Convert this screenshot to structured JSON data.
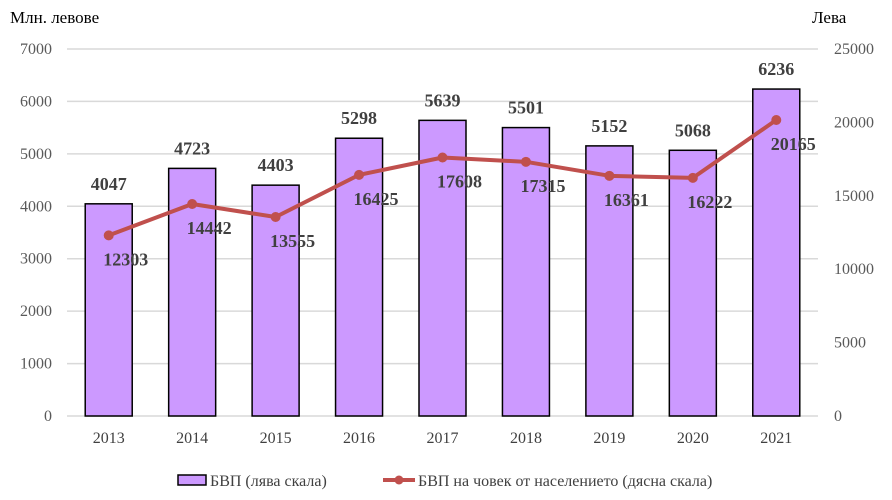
{
  "chart_data": {
    "type": "bar+line",
    "categories": [
      "2013",
      "2014",
      "2015",
      "2016",
      "2017",
      "2018",
      "2019",
      "2020",
      "2021"
    ],
    "series": [
      {
        "name": "БВП (лява скала)",
        "type": "bar",
        "axis": "left",
        "values": [
          4047,
          4723,
          4403,
          5298,
          5639,
          5501,
          5152,
          5068,
          6236
        ]
      },
      {
        "name": "БВП на човек от населението (дясна скала)",
        "type": "line",
        "axis": "right",
        "values": [
          12303,
          14442,
          13555,
          16425,
          17608,
          17315,
          16361,
          16222,
          20165
        ]
      }
    ],
    "left_axis": {
      "title": "Млн. левове",
      "ylim": [
        0,
        7000
      ],
      "ticks": [
        0,
        1000,
        2000,
        3000,
        4000,
        5000,
        6000,
        7000
      ]
    },
    "right_axis": {
      "title": "Лева",
      "ylim": [
        0,
        25000
      ],
      "ticks": [
        0,
        5000,
        10000,
        15000,
        20000,
        25000
      ]
    },
    "grid": true,
    "legend_position": "bottom",
    "colors": {
      "bar_fill": "#cc99ff",
      "bar_stroke": "#000000",
      "line": "#c0504d",
      "grid": "#d9d9d9"
    }
  }
}
